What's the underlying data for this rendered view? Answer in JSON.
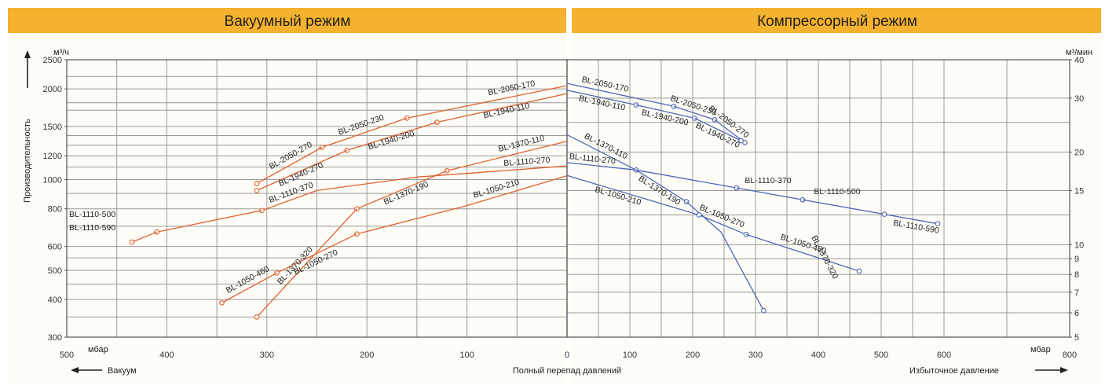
{
  "colors": {
    "vacuum_curve": "#e0602e",
    "compressor_curve": "#4f68b5",
    "header": "#f5b22e",
    "panel_bg": "#fdfcf6"
  },
  "panels": {
    "vacuum": {
      "title": "Вакуумный режим",
      "y_unit": "м³/ч",
      "y_label": "Производительность",
      "x_unit": "мбар",
      "bottom_label": "Вакуум"
    },
    "compressor": {
      "title": "Компрессорный режим",
      "y_unit": "м³/мин",
      "x_unit": "мбар",
      "bottom_label": "Избыточное давление"
    }
  },
  "center_label": "Полный перепад давлений",
  "chart_data": [
    {
      "type": "line",
      "title": "Вакуумный режим",
      "x_unit": "мбар",
      "y_unit": "м³/ч",
      "xlabel": "Полный перепад давлений",
      "ylabel": "Производительность",
      "y_scale": "log",
      "x_reversed": true,
      "xlim": [
        500,
        0
      ],
      "ylim": [
        300,
        2500
      ],
      "x_ticks": [
        500,
        400,
        300,
        200,
        100,
        0
      ],
      "y_ticks": [
        300,
        400,
        500,
        600,
        800,
        1000,
        1200,
        1500,
        2000,
        2500
      ],
      "grid": true,
      "series": [
        {
          "name": "BL-2050-170",
          "x": [
            0,
            160
          ],
          "y": [
            2050,
            1600
          ],
          "markers": [
            160
          ]
        },
        {
          "name": "BL-2050-230",
          "x": [
            160,
            245
          ],
          "y": [
            1600,
            1280
          ],
          "markers": [
            245
          ]
        },
        {
          "name": "BL-2050-270",
          "x": [
            245,
            310
          ],
          "y": [
            1280,
            970
          ],
          "markers": [
            310
          ]
        },
        {
          "name": "BL-1940-110",
          "x": [
            0,
            130
          ],
          "y": [
            1930,
            1550
          ],
          "markers": [
            130
          ]
        },
        {
          "name": "BL-1940-200",
          "x": [
            130,
            220
          ],
          "y": [
            1550,
            1250
          ],
          "markers": [
            220
          ]
        },
        {
          "name": "BL-1940-270",
          "x": [
            220,
            310
          ],
          "y": [
            1250,
            920
          ],
          "markers": [
            310
          ]
        },
        {
          "name": "BL-1370-110",
          "x": [
            0,
            120
          ],
          "y": [
            1340,
            1070
          ],
          "markers": [
            120
          ]
        },
        {
          "name": "BL-1370-190",
          "x": [
            120,
            210
          ],
          "y": [
            1070,
            800
          ],
          "markers": [
            210
          ]
        },
        {
          "name": "BL-1370-320",
          "x": [
            210,
            310
          ],
          "y": [
            800,
            350
          ],
          "markers": [
            310
          ]
        },
        {
          "name": "BL-1110-270",
          "x": [
            0,
            150,
            250
          ],
          "y": [
            1110,
            1020,
            920
          ],
          "markers": []
        },
        {
          "name": "BL-1110-370",
          "x": [
            250,
            305
          ],
          "y": [
            920,
            790
          ],
          "markers": [
            305
          ]
        },
        {
          "name": "BL-1110-500",
          "x": [
            305,
            410
          ],
          "y": [
            790,
            670
          ],
          "markers": [
            410
          ]
        },
        {
          "name": "BL-1110-590",
          "x": [
            410,
            435
          ],
          "y": [
            670,
            620
          ],
          "markers": [
            435
          ]
        },
        {
          "name": "BL-1050-210",
          "x": [
            0,
            100,
            210
          ],
          "y": [
            1030,
            820,
            660
          ],
          "markers": [
            210
          ]
        },
        {
          "name": "BL-1050-270",
          "x": [
            210,
            290
          ],
          "y": [
            660,
            490
          ],
          "markers": [
            290
          ]
        },
        {
          "name": "BL-1050-460",
          "x": [
            290,
            345
          ],
          "y": [
            490,
            390
          ],
          "markers": [
            345
          ]
        }
      ]
    },
    {
      "type": "line",
      "title": "Компрессорный режим",
      "x_unit": "мбар",
      "y_unit": "м³/мин",
      "xlabel": "Избыточное давление",
      "y_scale": "log",
      "xlim": [
        0,
        800
      ],
      "ylim": [
        5,
        40
      ],
      "x_ticks": [
        0,
        100,
        200,
        300,
        400,
        500,
        600,
        800
      ],
      "y_ticks": [
        5,
        6,
        7,
        8,
        9,
        10,
        15,
        20,
        30,
        40
      ],
      "grid": true,
      "series": [
        {
          "name": "BL-2050-170",
          "x": [
            0,
            170
          ],
          "y": [
            33.5,
            28.2
          ],
          "markers": [
            170
          ]
        },
        {
          "name": "BL-2050-230",
          "x": [
            170,
            235
          ],
          "y": [
            28.2,
            25.5
          ],
          "markers": [
            235
          ]
        },
        {
          "name": "BL-2050-270",
          "x": [
            235,
            283
          ],
          "y": [
            25.5,
            21.5
          ],
          "markers": [
            283
          ]
        },
        {
          "name": "BL-1940-110",
          "x": [
            0,
            110
          ],
          "y": [
            31.8,
            28.5
          ],
          "markers": [
            110
          ]
        },
        {
          "name": "BL-1940-200",
          "x": [
            110,
            203
          ],
          "y": [
            28.5,
            25.8
          ],
          "markers": [
            203
          ]
        },
        {
          "name": "BL-1940-270",
          "x": [
            203,
            277
          ],
          "y": [
            25.8,
            21.8
          ],
          "markers": [
            277
          ]
        },
        {
          "name": "BL-1370-110",
          "x": [
            0,
            110
          ],
          "y": [
            22.8,
            17.5
          ],
          "markers": [
            110
          ]
        },
        {
          "name": "BL-1370-190",
          "x": [
            110,
            190
          ],
          "y": [
            17.5,
            13.8
          ],
          "markers": [
            190
          ]
        },
        {
          "name": "BL-1370-320",
          "x": [
            190,
            245,
            313
          ],
          "y": [
            13.8,
            11,
            6.1
          ],
          "markers": [
            313
          ]
        },
        {
          "name": "BL-1110-270",
          "x": [
            0,
            110
          ],
          "y": [
            18.5,
            17.5
          ],
          "markers": []
        },
        {
          "name": "BL-1110-370",
          "x": [
            110,
            270
          ],
          "y": [
            17.5,
            15.3
          ],
          "markers": [
            270
          ]
        },
        {
          "name": "BL-1110-500",
          "x": [
            270,
            375
          ],
          "y": [
            15.3,
            14
          ],
          "markers": [
            375
          ]
        },
        {
          "name": "BL-1110-590",
          "x": [
            375,
            590
          ],
          "y": [
            14,
            11.7
          ],
          "markers": [
            505,
            590
          ]
        },
        {
          "name": "BL-1050-210",
          "x": [
            0,
            210
          ],
          "y": [
            16.8,
            12.5
          ],
          "markers": []
        },
        {
          "name": "BL-1050-270",
          "x": [
            210,
            285
          ],
          "y": [
            12.5,
            10.8
          ],
          "markers": [
            210,
            285
          ]
        },
        {
          "name": "BL-1050-460",
          "x": [
            285,
            465
          ],
          "y": [
            10.8,
            8.2
          ],
          "markers": [
            465
          ]
        }
      ]
    }
  ]
}
